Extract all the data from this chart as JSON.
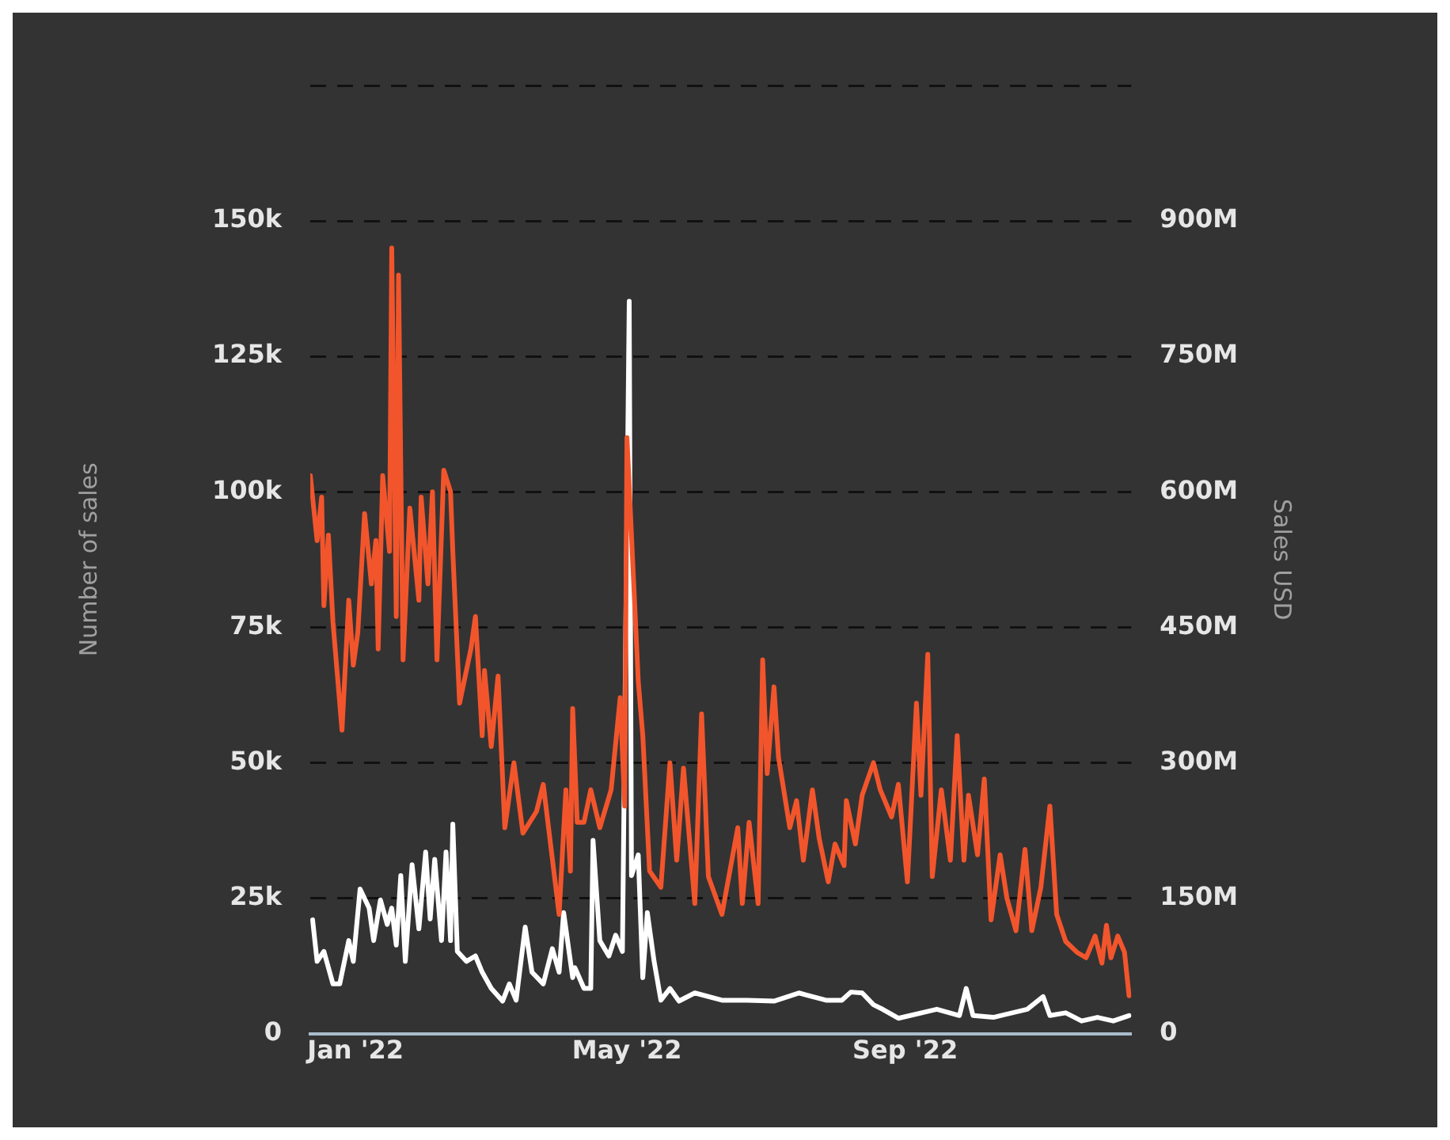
{
  "chart_data": {
    "type": "line",
    "ylabel": "Number of sales",
    "y2label": "Sales USD",
    "xlim": [
      "2021-12-12",
      "2022-12-10"
    ],
    "xticks": [
      {
        "value": "2022-01-01",
        "label": "Jan '22"
      },
      {
        "value": "2022-05-01",
        "label": "May '22"
      },
      {
        "value": "2022-09-01",
        "label": "Sep '22"
      }
    ],
    "ylim": [
      0,
      175000
    ],
    "yticks": [
      0,
      {
        "value": 25000,
        "label": "25k"
      },
      {
        "value": 50000,
        "label": "50k"
      },
      {
        "value": 75000,
        "label": "75k"
      },
      {
        "value": 100000,
        "label": "100k"
      },
      {
        "value": 125000,
        "label": "125k"
      },
      {
        "value": 150000,
        "label": "150k"
      },
      {
        "value": 175000,
        "label": null
      }
    ],
    "y2lim": [
      0,
      1050000000
    ],
    "y2ticks": [
      0,
      {
        "value": 150000000,
        "label": "150M"
      },
      {
        "value": 300000000,
        "label": "300M"
      },
      {
        "value": 450000000,
        "label": "450M"
      },
      {
        "value": 600000000,
        "label": "600M"
      },
      {
        "value": 750000000,
        "label": "750M"
      },
      {
        "value": 900000000,
        "label": "900M"
      },
      {
        "value": 1050000000,
        "label": null
      }
    ],
    "grid": "y",
    "legend": false,
    "marker": "none",
    "line_style": "solid",
    "series": [
      {
        "color": "#f2552c",
        "x": [
          "2021-12-12",
          "2021-12-15",
          "2021-12-17",
          "2021-12-18",
          "2021-12-20",
          "2021-12-22",
          "2021-12-26",
          "2021-12-29",
          "2021-12-31",
          "2022-01-02",
          "2022-01-05",
          "2022-01-08",
          "2022-01-10",
          "2022-01-11",
          "2022-01-13",
          "2022-01-16",
          "2022-01-17",
          "2022-01-19",
          "2022-01-20",
          "2022-01-22",
          "2022-01-25",
          "2022-01-29",
          "2022-01-30",
          "2022-02-02",
          "2022-02-04",
          "2022-02-06",
          "2022-02-09",
          "2022-02-12",
          "2022-02-13",
          "2022-02-16",
          "2022-02-19",
          "2022-02-21",
          "2022-02-23",
          "2022-02-26",
          "2022-02-27",
          "2022-03-02",
          "2022-03-05",
          "2022-03-08",
          "2022-03-12",
          "2022-03-16",
          "2022-03-22",
          "2022-03-25",
          "2022-04-01",
          "2022-04-04",
          "2022-04-06",
          "2022-04-07",
          "2022-04-09",
          "2022-04-12",
          "2022-04-15",
          "2022-04-19",
          "2022-04-24",
          "2022-04-28",
          "2022-04-30",
          "2022-05-01",
          "2022-05-06",
          "2022-05-08",
          "2022-05-11",
          "2022-05-16",
          "2022-05-20",
          "2022-05-23",
          "2022-05-26",
          "2022-05-31",
          "2022-06-03",
          "2022-06-06",
          "2022-06-12",
          "2022-06-19",
          "2022-06-21",
          "2022-06-24",
          "2022-06-28",
          "2022-06-30",
          "2022-07-02",
          "2022-07-05",
          "2022-07-07",
          "2022-07-12",
          "2022-07-15",
          "2022-07-18",
          "2022-07-22",
          "2022-07-25",
          "2022-07-29",
          "2022-08-01",
          "2022-08-05",
          "2022-08-06",
          "2022-08-10",
          "2022-08-13",
          "2022-08-18",
          "2022-08-21",
          "2022-08-26",
          "2022-08-29",
          "2022-09-02",
          "2022-09-06",
          "2022-09-08",
          "2022-09-11",
          "2022-09-13",
          "2022-09-17",
          "2022-09-21",
          "2022-09-24",
          "2022-09-27",
          "2022-09-29",
          "2022-10-03",
          "2022-10-06",
          "2022-10-09",
          "2022-10-13",
          "2022-10-16",
          "2022-10-20",
          "2022-10-24",
          "2022-10-27",
          "2022-10-31",
          "2022-11-04",
          "2022-11-07",
          "2022-11-11",
          "2022-11-16",
          "2022-11-20",
          "2022-11-24",
          "2022-11-27",
          "2022-11-29",
          "2022-12-01",
          "2022-12-04",
          "2022-12-07",
          "2022-12-09"
        ],
        "values": [
          103000,
          91000,
          99000,
          79000,
          92000,
          76000,
          56000,
          80000,
          68000,
          74000,
          96000,
          83000,
          91000,
          71000,
          103000,
          89000,
          145000,
          77000,
          140000,
          69000,
          97000,
          80000,
          99000,
          83000,
          100000,
          69000,
          104000,
          100000,
          89000,
          61000,
          67000,
          71000,
          77000,
          55000,
          67000,
          53000,
          66000,
          38000,
          50000,
          37000,
          41000,
          46000,
          22000,
          45000,
          30000,
          60000,
          39000,
          39000,
          45000,
          38000,
          45000,
          62000,
          42000,
          110000,
          65000,
          55000,
          30000,
          27000,
          50000,
          32000,
          49000,
          24000,
          59000,
          29000,
          22000,
          38000,
          24000,
          39000,
          24000,
          69000,
          48000,
          64000,
          51000,
          38000,
          43000,
          32000,
          45000,
          36000,
          28000,
          35000,
          31000,
          43000,
          35000,
          44000,
          50000,
          45000,
          40000,
          46000,
          28000,
          61000,
          44000,
          70000,
          29000,
          45000,
          32000,
          55000,
          32000,
          44000,
          33000,
          47000,
          21000,
          33000,
          25000,
          19000,
          34000,
          19000,
          27000,
          42000,
          22000,
          17000,
          15000,
          14000,
          18000,
          13000,
          20000,
          14000,
          18000,
          15000,
          7000
        ]
      },
      {
        "color": "#ffffff",
        "axis": "y2",
        "x": [
          "2021-12-13",
          "2021-12-15",
          "2021-12-18",
          "2021-12-22",
          "2021-12-25",
          "2021-12-29",
          "2021-12-31",
          "2022-01-03",
          "2022-01-07",
          "2022-01-09",
          "2022-01-12",
          "2022-01-15",
          "2022-01-17",
          "2022-01-19",
          "2022-01-21",
          "2022-01-23",
          "2022-01-26",
          "2022-01-29",
          "2022-02-01",
          "2022-02-03",
          "2022-02-05",
          "2022-02-08",
          "2022-02-10",
          "2022-02-12",
          "2022-02-13",
          "2022-02-15",
          "2022-02-19",
          "2022-02-23",
          "2022-02-26",
          "2022-03-02",
          "2022-03-07",
          "2022-03-10",
          "2022-03-13",
          "2022-03-17",
          "2022-03-20",
          "2022-03-25",
          "2022-03-29",
          "2022-04-01",
          "2022-04-03",
          "2022-04-07",
          "2022-04-08",
          "2022-04-12",
          "2022-04-15",
          "2022-04-16",
          "2022-04-19",
          "2022-04-23",
          "2022-04-26",
          "2022-04-29",
          "2022-05-02",
          "2022-05-03",
          "2022-05-06",
          "2022-05-08",
          "2022-05-10",
          "2022-05-13",
          "2022-05-16",
          "2022-05-20",
          "2022-05-24",
          "2022-05-31",
          "2022-06-12",
          "2022-06-23",
          "2022-07-05",
          "2022-07-16",
          "2022-07-28",
          "2022-08-04",
          "2022-08-08",
          "2022-08-13",
          "2022-08-18",
          "2022-08-22",
          "2022-08-29",
          "2022-09-15",
          "2022-09-25",
          "2022-09-28",
          "2022-10-01",
          "2022-10-10",
          "2022-10-25",
          "2022-11-01",
          "2022-11-04",
          "2022-11-11",
          "2022-11-18",
          "2022-11-25",
          "2022-12-02",
          "2022-12-09"
        ],
        "values": [
          126000000,
          80000000,
          91000000,
          55000000,
          55000000,
          103000000,
          80000000,
          160000000,
          139000000,
          103000000,
          148000000,
          121000000,
          139000000,
          98000000,
          175000000,
          80000000,
          187000000,
          116000000,
          201000000,
          127000000,
          193000000,
          103000000,
          201000000,
          103000000,
          232000000,
          91000000,
          80000000,
          86000000,
          68000000,
          50000000,
          36000000,
          55000000,
          37000000,
          118000000,
          68000000,
          55000000,
          94000000,
          68000000,
          134000000,
          62000000,
          73000000,
          50000000,
          50000000,
          214000000,
          103000000,
          86000000,
          109000000,
          91000000,
          811000000,
          175000000,
          198000000,
          62000000,
          134000000,
          80000000,
          37000000,
          50000000,
          36000000,
          45000000,
          37000000,
          37000000,
          36000000,
          45000000,
          37000000,
          37000000,
          46000000,
          45000000,
          32000000,
          27000000,
          17000000,
          27000000,
          20000000,
          50000000,
          20000000,
          18000000,
          27000000,
          41000000,
          20000000,
          23000000,
          14000000,
          18000000,
          14000000,
          20000000
        ]
      }
    ]
  }
}
